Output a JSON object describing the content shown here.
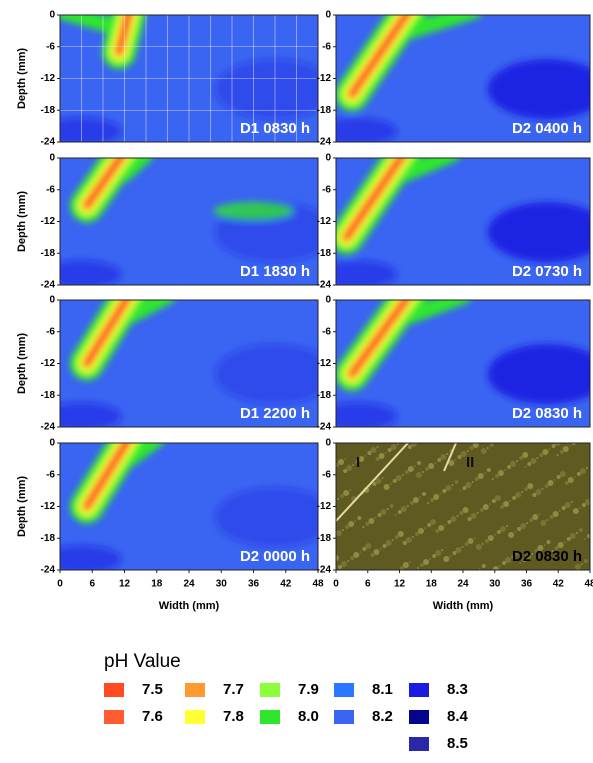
{
  "chart_data": [
    {
      "type": "heatmap",
      "label": "D1 0830 h",
      "ylabel": "Depth (mm)",
      "xlim": [
        0,
        48
      ],
      "ylim": [
        -24,
        0
      ],
      "yticks": [
        0,
        -6,
        -12,
        -18,
        -24
      ],
      "grid": true
    },
    {
      "type": "heatmap",
      "label": "D2 0400 h",
      "xlim": [
        0,
        48
      ],
      "ylim": [
        -24,
        0
      ],
      "yticks": [
        0,
        -6,
        -12,
        -18,
        -24
      ]
    },
    {
      "type": "heatmap",
      "label": "D1 1830 h",
      "ylabel": "Depth (mm)",
      "xlim": [
        0,
        48
      ],
      "ylim": [
        -24,
        0
      ],
      "yticks": [
        0,
        -6,
        -12,
        -18,
        -24
      ]
    },
    {
      "type": "heatmap",
      "label": "D2 0730 h",
      "xlim": [
        0,
        48
      ],
      "ylim": [
        -24,
        0
      ],
      "yticks": [
        0,
        -6,
        -12,
        -18,
        -24
      ]
    },
    {
      "type": "heatmap",
      "label": "D1 2200 h",
      "ylabel": "Depth (mm)",
      "xlim": [
        0,
        48
      ],
      "ylim": [
        -24,
        0
      ],
      "yticks": [
        0,
        -6,
        -12,
        -18,
        -24
      ]
    },
    {
      "type": "heatmap",
      "label": "D2 0830 h",
      "xlim": [
        0,
        48
      ],
      "ylim": [
        -24,
        0
      ],
      "yticks": [
        0,
        -6,
        -12,
        -18,
        -24
      ]
    },
    {
      "type": "heatmap",
      "label": "D2 0000 h",
      "ylabel": "Depth (mm)",
      "xlabel": "Width (mm)",
      "xlim": [
        0,
        48
      ],
      "ylim": [
        -24,
        0
      ],
      "xticks": [
        0,
        6,
        12,
        18,
        24,
        30,
        36,
        42,
        48
      ],
      "yticks": [
        0,
        -6,
        -12,
        -18,
        -24
      ]
    },
    {
      "type": "image",
      "label": "D2 0830 h",
      "annotations": [
        "I",
        "II"
      ],
      "xlabel": "Width (mm)",
      "xlim": [
        0,
        48
      ],
      "ylim": [
        -24,
        0
      ],
      "xticks": [
        0,
        6,
        12,
        18,
        24,
        30,
        36,
        42,
        48
      ],
      "yticks": [
        0,
        -6,
        -12,
        -18,
        -24
      ]
    }
  ],
  "legend": {
    "title": "pH Value",
    "items": [
      {
        "label": "7.5",
        "color": "#ff4a22"
      },
      {
        "label": "7.6",
        "color": "#ff5a30"
      },
      {
        "label": "7.7",
        "color": "#ff9a30"
      },
      {
        "label": "7.8",
        "color": "#ffff33"
      },
      {
        "label": "7.9",
        "color": "#8cff3a"
      },
      {
        "label": "8.0",
        "color": "#2ee62e"
      },
      {
        "label": "8.1",
        "color": "#2a78ff"
      },
      {
        "label": "8.2",
        "color": "#3a64f2"
      },
      {
        "label": "8.3",
        "color": "#1a1ae0"
      },
      {
        "label": "8.4",
        "color": "#05058c"
      },
      {
        "label": "8.5",
        "color": "#2828a8"
      }
    ]
  }
}
